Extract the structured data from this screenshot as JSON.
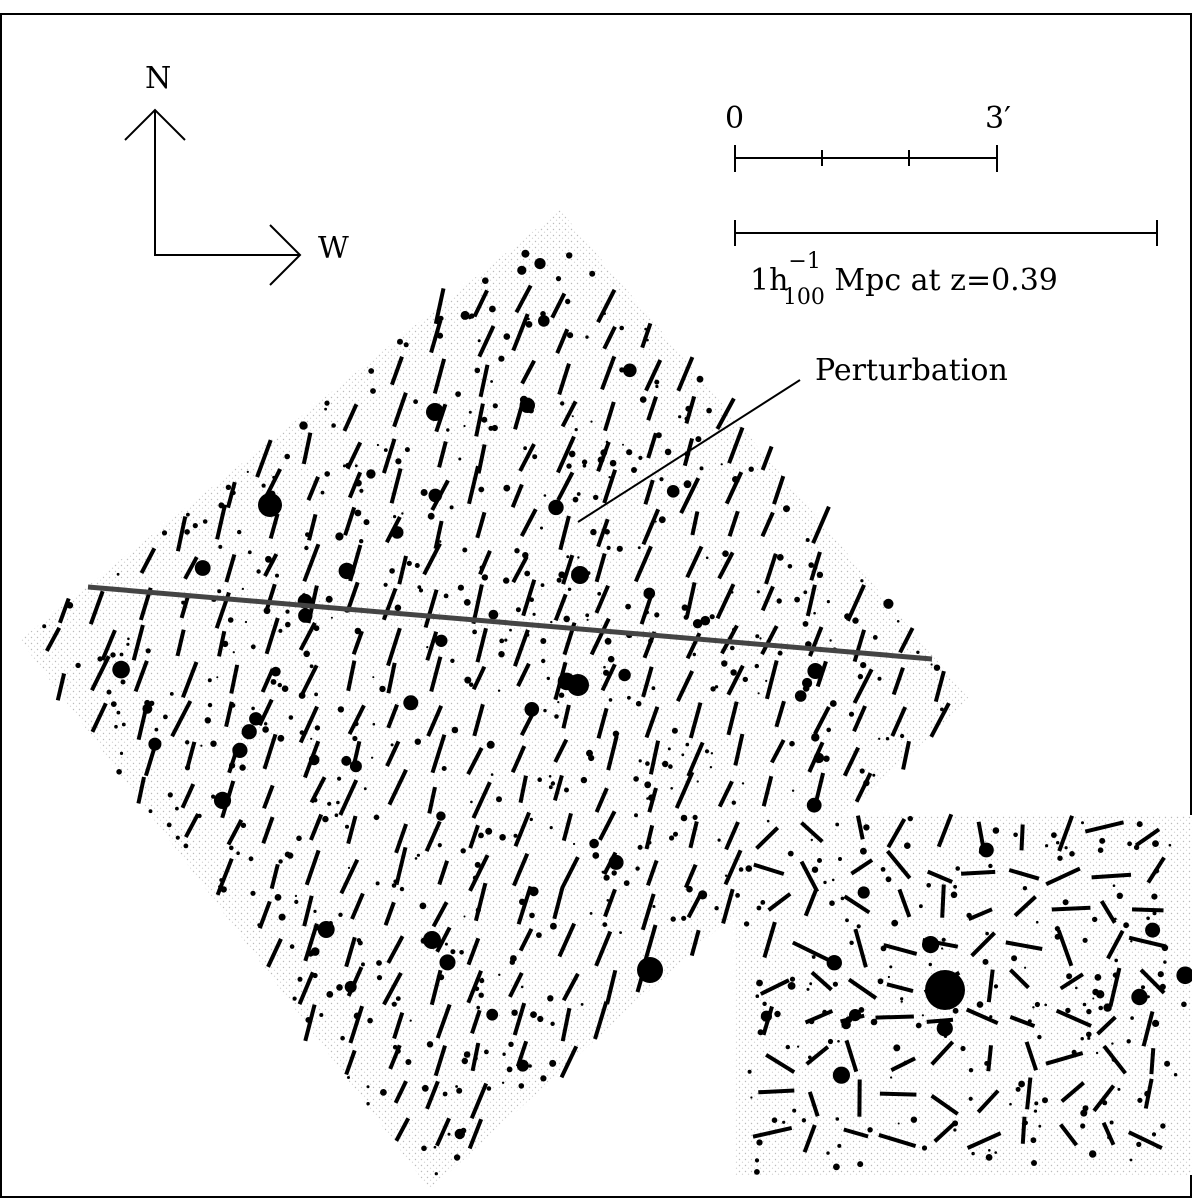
{
  "compass": {
    "north": "N",
    "west": "W"
  },
  "scale_bar": {
    "angular": {
      "start": "0",
      "end": "3′"
    },
    "physical": {
      "prefix": "1h",
      "superscript": "−1",
      "subscript": "100",
      "suffix": " Mpc at z=0.39"
    }
  },
  "annotation": {
    "label": "Perturbation"
  }
}
